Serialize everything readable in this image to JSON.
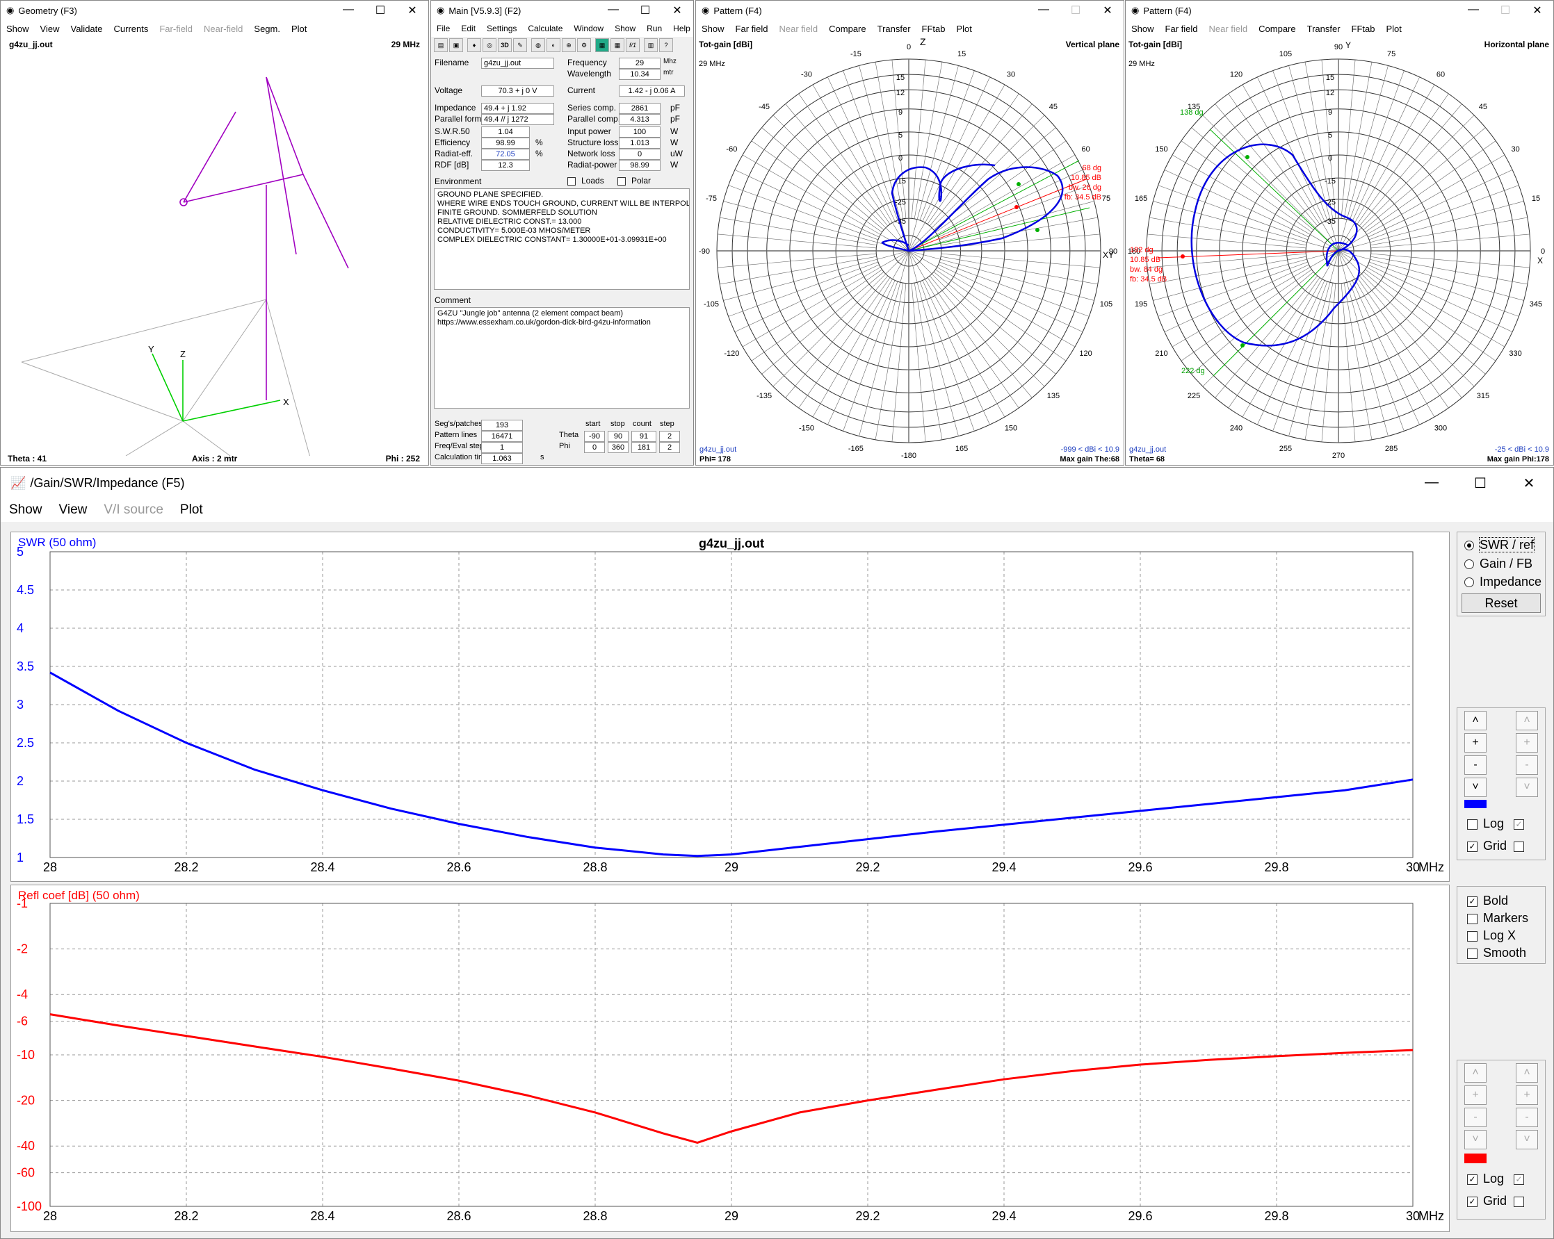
{
  "geometry": {
    "title": "Geometry (F3)",
    "menu": [
      "Show",
      "View",
      "Validate",
      "Currents",
      "Far-field",
      "Near-field",
      "Segm.",
      "Plot"
    ],
    "filename": "g4zu_jj.out",
    "freq": "29 MHz",
    "theta": "Theta : 41",
    "axis": "Axis : 2 mtr",
    "phi": "Phi : 252",
    "axes": {
      "x": "X",
      "y": "Y",
      "z": "Z"
    }
  },
  "main": {
    "title": "Main [V5.9.3]  (F2)",
    "menu": [
      "File",
      "Edit",
      "Settings",
      "Calculate",
      "Window",
      "Show",
      "Run",
      "Help"
    ],
    "labels": {
      "filename": "Filename",
      "frequency": "Frequency",
      "wavelength": "Wavelength",
      "voltage": "Voltage",
      "current": "Current",
      "impedance": "Impedance",
      "series": "Series comp.",
      "parallel_form": "Parallel form",
      "parallel_comp": "Parallel comp.",
      "swr": "S.W.R.50",
      "input_power": "Input power",
      "efficiency": "Efficiency",
      "structure_loss": "Structure loss",
      "radiat_eff": "Radiat-eff.",
      "network_loss": "Network loss",
      "rdf": "RDF [dB]",
      "radiat_power": "Radiat-power",
      "environment": "Environment",
      "loads": "Loads",
      "polar": "Polar",
      "comment": "Comment",
      "segs": "Seg's/patches",
      "pattern_lines": "Pattern lines",
      "freq_eval": "Freq/Eval steps",
      "calc_time": "Calculation time",
      "start": "start",
      "stop": "stop",
      "count": "count",
      "step": "step",
      "theta": "Theta",
      "phi": "Phi"
    },
    "values": {
      "filename": "g4zu_jj.out",
      "frequency": "29",
      "frequency_unit": "Mhz",
      "wavelength": "10.34",
      "wavelength_unit": "mtr",
      "voltage": "70.3 + j 0 V",
      "current": "1.42 - j 0.06 A",
      "impedance": "49.4 + j 1.92",
      "series": "2861",
      "series_unit": "pF",
      "parallel_form": "49.4 // j 1272",
      "parallel_comp": "4.313",
      "parallel_unit": "pF",
      "swr": "1.04",
      "input_power": "100",
      "input_unit": "W",
      "efficiency": "98.99",
      "eff_unit": "%",
      "structure_loss": "1.013",
      "struct_unit": "W",
      "radiat_eff": "72.05",
      "radeff_unit": "%",
      "network_loss": "0",
      "network_unit": "uW",
      "rdf": "12.3",
      "radiat_power": "98.99",
      "radpow_unit": "W",
      "segs": "193",
      "pattern_lines": "16471",
      "freq_eval": "1",
      "calc_time": "1.063",
      "calc_unit": "s",
      "theta_start": "-90",
      "theta_stop": "90",
      "theta_count": "91",
      "theta_step": "2",
      "phi_start": "0",
      "phi_stop": "360",
      "phi_count": "181",
      "phi_step": "2"
    },
    "environment": [
      "GROUND PLANE SPECIFIED.",
      "WHERE WIRE ENDS TOUCH GROUND, CURRENT WILL BE INTERPOLA",
      "FINITE GROUND.  SOMMERFELD SOLUTION",
      "RELATIVE DIELECTRIC CONST.= 13.000",
      "CONDUCTIVITY= 5.000E-03 MHOS/METER",
      "COMPLEX DIELECTRIC CONSTANT= 1.30000E+01-3.09931E+00"
    ],
    "comment": [
      "G4ZU \"Jungle job\" antenna (2 element compact beam)",
      "https://www.essexham.co.uk/gordon-dick-bird-g4zu-information"
    ]
  },
  "pattern_v": {
    "title": "Pattern    (F4)",
    "menu": [
      "Show",
      "Far field",
      "Near field",
      "Compare",
      "Transfer",
      "FFtab",
      "Plot"
    ],
    "gain_label": "Tot-gain [dBi]",
    "plane": "Vertical plane",
    "freq": "29 MHz",
    "ang_labels": [
      "0",
      "15",
      "30",
      "45",
      "60",
      "75",
      "90",
      "105",
      "120",
      "135",
      "150",
      "165",
      "-180",
      "-165",
      "-150",
      "-135",
      "-120",
      "-105",
      "-90",
      "-75",
      "-60",
      "-45",
      "-30",
      "-15"
    ],
    "rings": [
      "15",
      "12",
      "9",
      "5",
      "0",
      "-15",
      "-25",
      "-35"
    ],
    "zlabel": "Z",
    "xylabel": "XY",
    "info": [
      "68 dg",
      "10.85 dB",
      "bw. 26 dg",
      "fb: 34.5 dB"
    ],
    "file": "g4zu_jj.out",
    "phi": "Phi= 178",
    "range": "-999 < dBi < 10.9",
    "maxgain": "Max gain The:68"
  },
  "pattern_h": {
    "title": "Pattern    (F4)",
    "menu": [
      "Show",
      "Far field",
      "Near field",
      "Compare",
      "Transfer",
      "FFtab",
      "Plot"
    ],
    "gain_label": "Tot-gain [dBi]",
    "plane": "Horizontal plane",
    "freq": "29 MHz",
    "ang_labels": [
      "90",
      "75",
      "60",
      "45",
      "30",
      "15",
      "0",
      "345",
      "330",
      "315",
      "300",
      "285",
      "270",
      "255",
      "240",
      "225",
      "210",
      "195",
      "180",
      "165",
      "150",
      "135",
      "120",
      "105"
    ],
    "rings": [
      "15",
      "12",
      "9",
      "5",
      "0",
      "-15",
      "-25",
      "-35"
    ],
    "ylabel": "Y",
    "xlabel": "X",
    "info": [
      "182 dg",
      "10.85 dB",
      "bw. 84 dg",
      "fb: 34.5 dB"
    ],
    "beam_a": "138 dg",
    "beam_b": "222 dg",
    "file": "g4zu_jj.out",
    "theta": "Theta= 68",
    "range": "-25 < dBi < 10.9",
    "maxgain": "Max gain Phi:178"
  },
  "swrwin": {
    "title": "/Gain/SWR/Impedance  (F5)",
    "menu": [
      "Show",
      "View",
      "V/I source",
      "Plot"
    ],
    "file": "g4zu_jj.out",
    "unit": "MHz",
    "radio": [
      "SWR / ref",
      "Gain / FB",
      "Impedance"
    ],
    "reset": "Reset",
    "log": "Log",
    "grid": "Grid",
    "checks": [
      "Bold",
      "Markers",
      "Log X",
      "Smooth"
    ],
    "swr_color": "#0000ff",
    "refl_color": "#ff0000"
  },
  "chart_data": [
    {
      "type": "line",
      "title": "g4zu_jj.out",
      "ylabel": "SWR (50 ohm)",
      "xlabel": "MHz",
      "xlim": [
        28,
        30
      ],
      "ylim": [
        1,
        5
      ],
      "x": [
        28.0,
        28.1,
        28.2,
        28.3,
        28.4,
        28.5,
        28.6,
        28.7,
        28.8,
        28.9,
        28.95,
        29.0,
        29.1,
        29.2,
        29.3,
        29.4,
        29.5,
        29.6,
        29.7,
        29.8,
        29.9,
        30.0
      ],
      "series": [
        {
          "name": "SWR",
          "values": [
            3.42,
            2.92,
            2.5,
            2.15,
            1.88,
            1.64,
            1.44,
            1.27,
            1.13,
            1.04,
            1.02,
            1.04,
            1.14,
            1.24,
            1.34,
            1.43,
            1.52,
            1.61,
            1.7,
            1.79,
            1.88,
            2.02
          ]
        }
      ],
      "yticks": [
        "5",
        "4.5",
        "4",
        "3.5",
        "3",
        "2.5",
        "2",
        "1.5",
        "1"
      ],
      "xticks": [
        "28",
        "28.2",
        "28.4",
        "28.6",
        "28.8",
        "29",
        "29.2",
        "29.4",
        "29.6",
        "29.8",
        "30"
      ]
    },
    {
      "type": "line",
      "ylabel": "Refl coef [dB] (50 ohm)",
      "xlabel": "MHz",
      "xlim": [
        28,
        30
      ],
      "ylim": [
        -100,
        -1
      ],
      "yscale": "log",
      "x": [
        28.0,
        28.1,
        28.2,
        28.3,
        28.4,
        28.5,
        28.6,
        28.7,
        28.8,
        28.9,
        28.95,
        29.0,
        29.1,
        29.2,
        29.3,
        29.4,
        29.5,
        29.6,
        29.7,
        29.8,
        29.9,
        30.0
      ],
      "series": [
        {
          "name": "Refl coef",
          "values": [
            -5.4,
            -6.4,
            -7.5,
            -8.8,
            -10.3,
            -12.3,
            -14.8,
            -18.5,
            -24,
            -33,
            -38,
            -32,
            -24,
            -20,
            -17,
            -14.5,
            -12.8,
            -11.6,
            -10.8,
            -10.2,
            -9.7,
            -9.3
          ]
        }
      ],
      "yticks": [
        "-1",
        "-2",
        "-4",
        "-6",
        "-10",
        "-20",
        "-40",
        "-60",
        "-100"
      ],
      "xticks": [
        "28",
        "28.2",
        "28.4",
        "28.6",
        "28.8",
        "29",
        "29.2",
        "29.4",
        "29.6",
        "29.8",
        "30"
      ]
    }
  ]
}
